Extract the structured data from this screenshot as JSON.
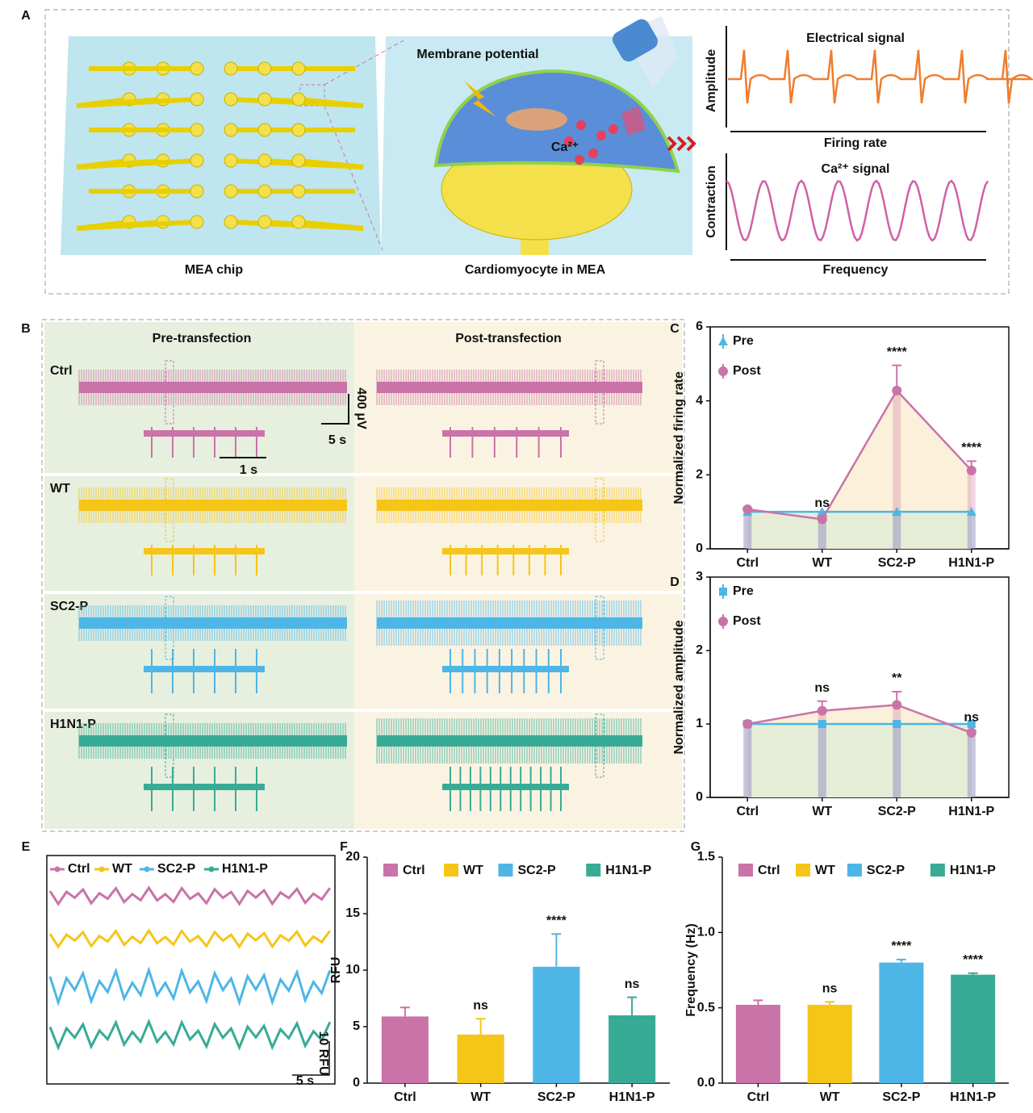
{
  "panel_labels": [
    "A",
    "B",
    "C",
    "D",
    "E",
    "F",
    "G"
  ],
  "diagram": {
    "mea_chip": "MEA chip",
    "cardiomyocyte": "Cardiomyocyte in MEA",
    "membrane": "Membrane potential",
    "calcium": "Ca²⁺",
    "electrical_signal": "Electrical signal",
    "amplitude": "Amplitude",
    "firing_rate": "Firing rate",
    "ca_signal": "Ca²⁺ signal",
    "contraction": "Contraction",
    "frequency": "Frequency"
  },
  "traces": {
    "headers": [
      "Pre-transfection",
      "Post-transfection"
    ],
    "groups": [
      "Ctrl",
      "WT",
      "SC2-P",
      "H1N1-P"
    ],
    "colors": [
      "#c973a8",
      "#f5c518",
      "#4db6e6",
      "#38ab96"
    ],
    "scale_amplitude": "400 μV",
    "scale_time": "5 s",
    "scale_inset": "1 s"
  },
  "chart_data": [
    {
      "type": "line",
      "ylabel": "Normalized firing rate",
      "categories": [
        "Ctrl",
        "WT",
        "SC2-P",
        "H1N1-P"
      ],
      "ylim": [
        0,
        6
      ],
      "yticks": [
        0,
        2,
        4,
        6
      ],
      "series": [
        {
          "name": "Pre",
          "color": "#4db6e6",
          "marker": "triangle",
          "area": "#e3ecd6",
          "values": [
            1,
            1,
            1,
            1
          ]
        },
        {
          "name": "Post",
          "color": "#c973a8",
          "marker": "circle",
          "area": "#fbeed5",
          "values": [
            1.07,
            0.8,
            4.28,
            2.12
          ],
          "errors": [
            0.03,
            0.08,
            0.68,
            0.25
          ]
        }
      ],
      "annotations": [
        null,
        "ns",
        "****",
        "****"
      ]
    },
    {
      "type": "line",
      "ylabel": "Normalized amplitude",
      "categories": [
        "Ctrl",
        "WT",
        "SC2-P",
        "H1N1-P"
      ],
      "ylim": [
        0,
        3
      ],
      "yticks": [
        0,
        1,
        2,
        3
      ],
      "series": [
        {
          "name": "Pre",
          "color": "#4db6e6",
          "marker": "square",
          "area": "#e3ecd6",
          "values": [
            1,
            1,
            1,
            1
          ]
        },
        {
          "name": "Post",
          "color": "#c973a8",
          "marker": "circle",
          "area": "#fbeed5",
          "values": [
            1.0,
            1.18,
            1.26,
            0.88
          ],
          "errors": [
            0.03,
            0.13,
            0.18,
            0.03
          ]
        }
      ],
      "annotations": [
        null,
        "ns",
        "**",
        "ns"
      ]
    },
    {
      "type": "trace",
      "series": [
        {
          "name": "Ctrl",
          "color": "#c973a8"
        },
        {
          "name": "WT",
          "color": "#f5c518"
        },
        {
          "name": "SC2-P",
          "color": "#4db6e6"
        },
        {
          "name": "H1N1-P",
          "color": "#38ab96"
        }
      ],
      "scale_x": "5 s",
      "scale_y": "10 RFU"
    },
    {
      "type": "bar",
      "ylabel": "RFU",
      "categories": [
        "Ctrl",
        "WT",
        "SC2-P",
        "H1N1-P"
      ],
      "colors": [
        "#c973a8",
        "#f5c518",
        "#4db6e6",
        "#38ab96"
      ],
      "ylim": [
        0,
        20
      ],
      "yticks": [
        0,
        5,
        10,
        15,
        20
      ],
      "values": [
        5.9,
        4.3,
        10.3,
        6.0
      ],
      "errors": [
        0.8,
        1.4,
        2.9,
        1.6
      ],
      "annotations": [
        null,
        "ns",
        "****",
        "ns"
      ]
    },
    {
      "type": "bar",
      "ylabel": "Frequency (Hz)",
      "categories": [
        "Ctrl",
        "WT",
        "SC2-P",
        "H1N1-P"
      ],
      "colors": [
        "#c973a8",
        "#f5c518",
        "#4db6e6",
        "#38ab96"
      ],
      "ylim": [
        0,
        1.5
      ],
      "yticks": [
        {
          "value": 0,
          "label": "0.0"
        },
        0.5,
        {
          "value": 1,
          "label": "1.0"
        },
        1.5
      ],
      "values": [
        0.52,
        0.52,
        0.8,
        0.72
      ],
      "errors": [
        0.03,
        0.02,
        0.02,
        0.01
      ],
      "annotations": [
        null,
        "ns",
        "****",
        "****"
      ]
    }
  ]
}
